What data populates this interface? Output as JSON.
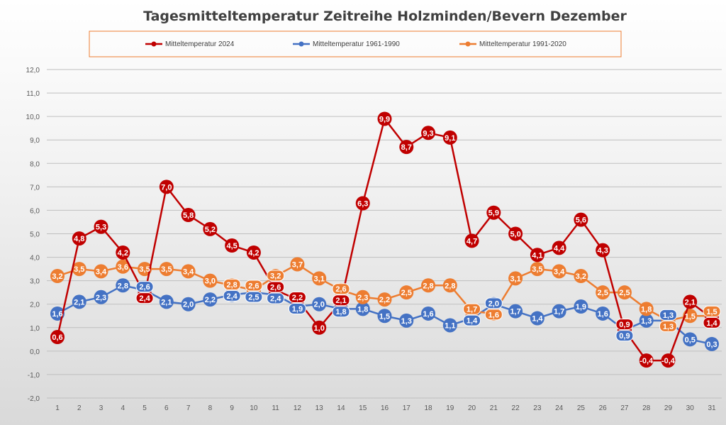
{
  "chart_data": {
    "type": "line",
    "title": "Tagesmitteltemperatur Zeitreihe Holzminden/Bevern Dezember",
    "xlabel": "",
    "ylabel": "",
    "x": [
      1,
      2,
      3,
      4,
      5,
      6,
      7,
      8,
      9,
      10,
      11,
      12,
      13,
      14,
      15,
      16,
      17,
      18,
      19,
      20,
      21,
      22,
      23,
      24,
      25,
      26,
      27,
      28,
      29,
      30,
      31
    ],
    "ylim": [
      -2.0,
      12.0
    ],
    "yticks": [
      "-2,0",
      "-1,0",
      "0,0",
      "1,0",
      "2,0",
      "3,0",
      "4,0",
      "5,0",
      "6,0",
      "7,0",
      "8,0",
      "9,0",
      "10,0",
      "11,0",
      "12,0"
    ],
    "grid": true,
    "legend_position": "top",
    "series": [
      {
        "name": "Mitteltemperatur 2024",
        "color": "#c00000",
        "values": [
          0.6,
          4.8,
          5.3,
          4.2,
          2.4,
          7.0,
          5.8,
          5.2,
          4.5,
          4.2,
          2.6,
          2.2,
          1.0,
          2.1,
          6.3,
          9.9,
          8.7,
          9.3,
          9.1,
          4.7,
          5.9,
          5.0,
          4.1,
          4.4,
          5.6,
          4.3,
          0.9,
          -0.4,
          -0.4,
          2.1,
          1.4
        ]
      },
      {
        "name": "Mitteltemperatur 1961-1990",
        "color": "#4472c4",
        "values": [
          1.6,
          2.1,
          2.3,
          2.8,
          2.6,
          2.1,
          2.0,
          2.2,
          2.4,
          2.5,
          2.4,
          1.9,
          2.0,
          1.8,
          1.8,
          1.5,
          1.3,
          1.6,
          1.1,
          1.4,
          2.0,
          1.7,
          1.4,
          1.7,
          1.9,
          1.6,
          0.9,
          1.3,
          1.3,
          0.5,
          0.3
        ]
      },
      {
        "name": "Mitteltemperatur 1991-2020",
        "color": "#ed7d31",
        "values": [
          3.2,
          3.5,
          3.4,
          3.6,
          3.5,
          3.5,
          3.4,
          3.0,
          2.8,
          2.6,
          3.2,
          3.7,
          3.1,
          2.6,
          2.3,
          2.2,
          2.5,
          2.8,
          2.8,
          1.7,
          1.6,
          3.1,
          3.5,
          3.4,
          3.2,
          2.5,
          2.5,
          1.8,
          1.3,
          1.5,
          1.5
        ]
      }
    ]
  }
}
